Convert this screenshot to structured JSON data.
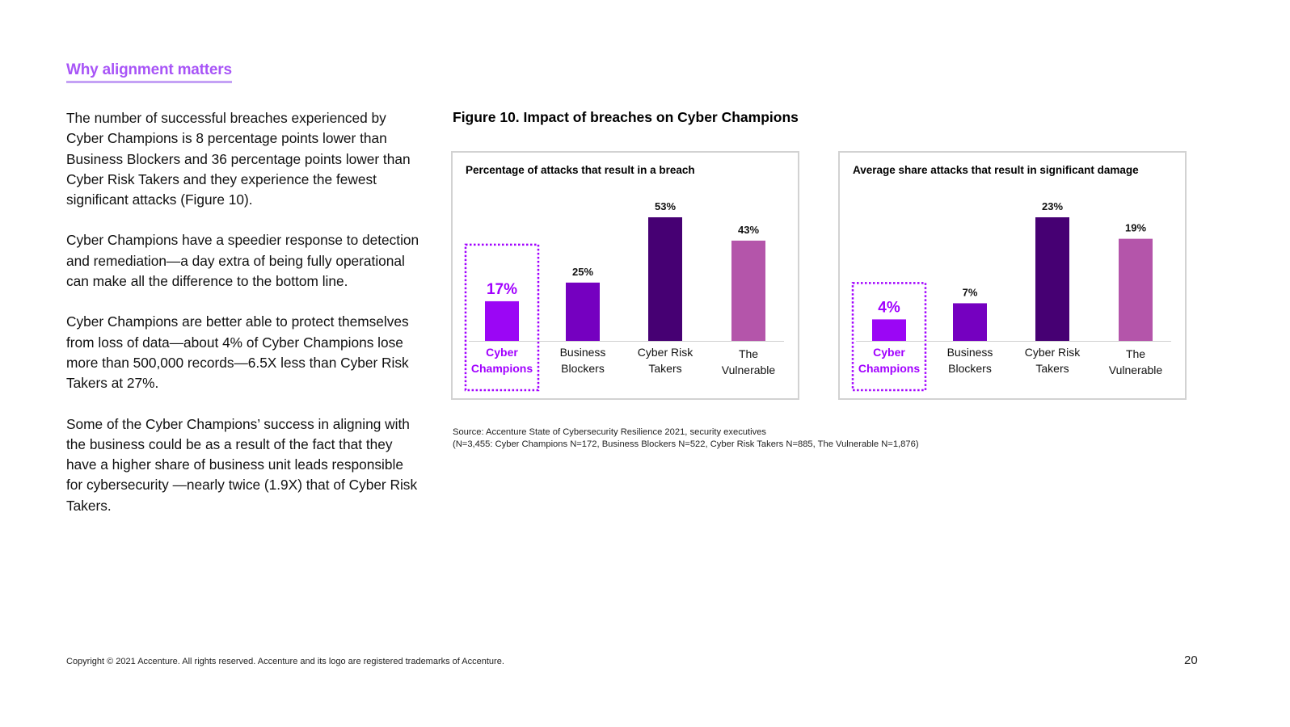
{
  "heading": "Why alignment matters",
  "paragraphs": [
    "The number of successful breaches experienced by Cyber Champions is 8 percentage points lower than Business Blockers and 36 percentage points lower than Cyber Risk Takers and they experience the fewest significant attacks (Figure 10).",
    "Cyber Champions have a speedier response to detection and remediation—a day extra of being fully operational can make all the difference to the bottom line.",
    "Cyber Champions are better able to protect themselves from loss of data—about 4% of Cyber Champions lose more than 500,000 records—6.5X less than Cyber Risk Takers at 27%.",
    "Some of the Cyber Champions’ success in aligning with the business could be as a result of the fact that they have a higher share of business unit leads responsible for cybersecurity —nearly twice (1.9X) that of Cyber Risk Takers."
  ],
  "figure_title": "Figure 10. Impact of breaches on Cyber Champions",
  "colors": [
    "#9b06f5",
    "#7500c0",
    "#460073",
    "#b455aa"
  ],
  "highlight_color": "#a100ff",
  "chart_data": [
    {
      "type": "bar",
      "title": "Percentage of attacks that result in a breach",
      "categories": [
        [
          "Cyber",
          "Champions"
        ],
        [
          "Business",
          "Blockers"
        ],
        [
          "Cyber Risk",
          "Takers"
        ],
        [
          "The",
          "Vulnerable"
        ]
      ],
      "values": [
        17,
        25,
        53,
        43
      ],
      "labels": [
        "17%",
        "25%",
        "53%",
        "43%"
      ],
      "highlight_index": 0,
      "ylim": [
        0,
        53
      ]
    },
    {
      "type": "bar",
      "title": "Average share attacks that result in significant damage",
      "categories": [
        [
          "Cyber",
          "Champions"
        ],
        [
          "Business",
          "Blockers"
        ],
        [
          "Cyber Risk",
          "Takers"
        ],
        [
          "The",
          "Vulnerable"
        ]
      ],
      "values": [
        4,
        7,
        23,
        19
      ],
      "labels": [
        "4%",
        "7%",
        "23%",
        "19%"
      ],
      "highlight_index": 0,
      "ylim": [
        0,
        23
      ]
    }
  ],
  "source_lines": [
    "Source: Accenture State of Cybersecurity Resilience 2021, security executives",
    "(N=3,455: Cyber Champions N=172, Business Blockers N=522, Cyber Risk Takers N=885, The Vulnerable N=1,876)"
  ],
  "footer": "Copyright © 2021 Accenture. All rights reserved. Accenture and its logo are registered trademarks of Accenture.",
  "page_number": "20"
}
